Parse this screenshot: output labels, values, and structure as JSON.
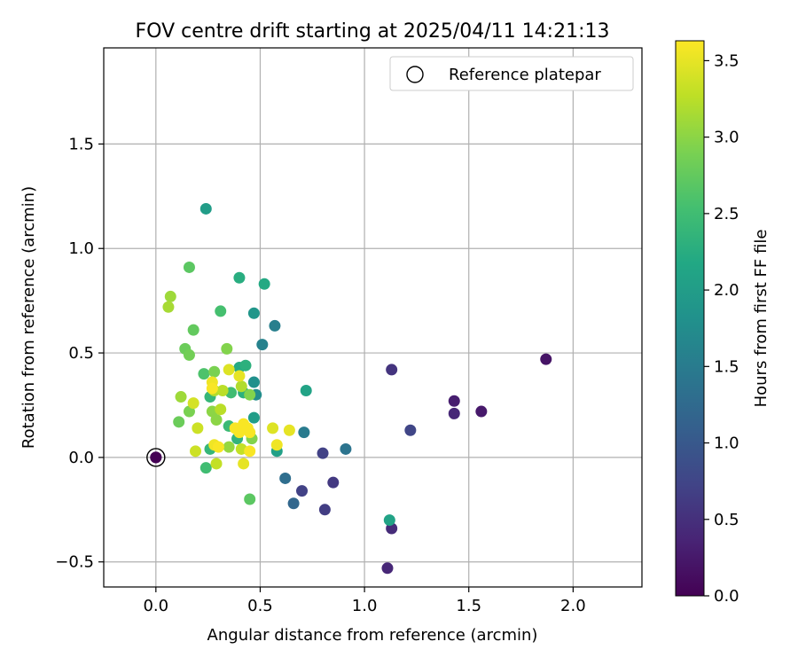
{
  "chart_data": {
    "type": "scatter",
    "title": "FOV centre drift starting at 2025/04/11 14:21:13",
    "xlabel": "Angular distance from reference (arcmin)",
    "ylabel": "Rotation from reference (arcmin)",
    "xlim": [
      -0.25,
      2.33
    ],
    "ylim": [
      -0.62,
      1.96
    ],
    "xticks": [
      0.0,
      0.5,
      1.0,
      1.5,
      2.0
    ],
    "xtick_labels": [
      "0.0",
      "0.5",
      "1.0",
      "1.5",
      "2.0"
    ],
    "yticks": [
      -0.5,
      0.0,
      0.5,
      1.0,
      1.5
    ],
    "ytick_labels": [
      "−0.5",
      "0.0",
      "0.5",
      "1.0",
      "1.5"
    ],
    "grid": true,
    "legend": {
      "position": "top-right",
      "entries": [
        "Reference platepar"
      ]
    },
    "colorbar": {
      "label": "Hours from first FF file",
      "colormap": "viridis",
      "range": [
        0.0,
        3.63
      ],
      "ticks": [
        0.0,
        0.5,
        1.0,
        1.5,
        2.0,
        2.5,
        3.0,
        3.5
      ],
      "tick_labels": [
        "0.0",
        "0.5",
        "1.0",
        "1.5",
        "2.0",
        "2.5",
        "3.0",
        "3.5"
      ]
    },
    "reference_point": {
      "x": 0.0,
      "y": 0.0,
      "c": 0.0
    },
    "points": [
      {
        "x": 0.0,
        "y": 0.0,
        "c": 0.0
      },
      {
        "x": 1.87,
        "y": 0.47,
        "c": 0.2
      },
      {
        "x": 1.56,
        "y": 0.22,
        "c": 0.25
      },
      {
        "x": 1.43,
        "y": 0.27,
        "c": 0.3
      },
      {
        "x": 1.43,
        "y": 0.21,
        "c": 0.4
      },
      {
        "x": 1.11,
        "y": -0.53,
        "c": 0.4
      },
      {
        "x": 1.13,
        "y": -0.34,
        "c": 0.45
      },
      {
        "x": 1.13,
        "y": 0.42,
        "c": 0.55
      },
      {
        "x": 0.85,
        "y": -0.12,
        "c": 0.6
      },
      {
        "x": 0.81,
        "y": -0.25,
        "c": 0.65
      },
      {
        "x": 0.8,
        "y": 0.02,
        "c": 0.7
      },
      {
        "x": 0.7,
        "y": -0.16,
        "c": 0.7
      },
      {
        "x": 1.22,
        "y": 0.13,
        "c": 0.75
      },
      {
        "x": 0.66,
        "y": -0.22,
        "c": 1.2
      },
      {
        "x": 0.62,
        "y": -0.1,
        "c": 1.3
      },
      {
        "x": 0.91,
        "y": 0.04,
        "c": 1.4
      },
      {
        "x": 0.71,
        "y": 0.12,
        "c": 1.5
      },
      {
        "x": 0.57,
        "y": 0.63,
        "c": 1.55
      },
      {
        "x": 0.51,
        "y": 0.54,
        "c": 1.6
      },
      {
        "x": 0.48,
        "y": 0.3,
        "c": 1.75
      },
      {
        "x": 0.47,
        "y": 0.36,
        "c": 1.8
      },
      {
        "x": 0.47,
        "y": 0.69,
        "c": 1.9
      },
      {
        "x": 0.24,
        "y": 1.19,
        "c": 2.0
      },
      {
        "x": 0.47,
        "y": 0.19,
        "c": 2.0
      },
      {
        "x": 0.58,
        "y": 0.03,
        "c": 2.05
      },
      {
        "x": 1.12,
        "y": -0.3,
        "c": 2.1
      },
      {
        "x": 0.72,
        "y": 0.32,
        "c": 2.1
      },
      {
        "x": 0.52,
        "y": 0.83,
        "c": 2.2
      },
      {
        "x": 0.4,
        "y": 0.86,
        "c": 2.25
      },
      {
        "x": 0.4,
        "y": 0.43,
        "c": 2.2
      },
      {
        "x": 0.43,
        "y": 0.44,
        "c": 2.3
      },
      {
        "x": 0.42,
        "y": 0.31,
        "c": 2.3
      },
      {
        "x": 0.39,
        "y": 0.09,
        "c": 2.35
      },
      {
        "x": 0.26,
        "y": 0.29,
        "c": 2.4
      },
      {
        "x": 0.26,
        "y": 0.04,
        "c": 2.4
      },
      {
        "x": 0.24,
        "y": -0.05,
        "c": 2.5
      },
      {
        "x": 0.35,
        "y": 0.15,
        "c": 2.45
      },
      {
        "x": 0.36,
        "y": 0.31,
        "c": 2.5
      },
      {
        "x": 0.31,
        "y": 0.7,
        "c": 2.55
      },
      {
        "x": 0.23,
        "y": 0.4,
        "c": 2.6
      },
      {
        "x": 0.45,
        "y": -0.2,
        "c": 2.7
      },
      {
        "x": 0.16,
        "y": 0.91,
        "c": 2.7
      },
      {
        "x": 0.18,
        "y": 0.61,
        "c": 2.75
      },
      {
        "x": 0.14,
        "y": 0.52,
        "c": 2.8
      },
      {
        "x": 0.16,
        "y": 0.49,
        "c": 2.85
      },
      {
        "x": 0.11,
        "y": 0.17,
        "c": 2.8
      },
      {
        "x": 0.16,
        "y": 0.22,
        "c": 2.9
      },
      {
        "x": 0.28,
        "y": 0.41,
        "c": 2.9
      },
      {
        "x": 0.34,
        "y": 0.52,
        "c": 2.95
      },
      {
        "x": 0.27,
        "y": 0.22,
        "c": 3.0
      },
      {
        "x": 0.29,
        "y": 0.18,
        "c": 3.0
      },
      {
        "x": 0.45,
        "y": 0.3,
        "c": 2.95
      },
      {
        "x": 0.46,
        "y": 0.09,
        "c": 2.95
      },
      {
        "x": 0.35,
        "y": 0.05,
        "c": 3.05
      },
      {
        "x": 0.07,
        "y": 0.77,
        "c": 3.1
      },
      {
        "x": 0.06,
        "y": 0.72,
        "c": 3.15
      },
      {
        "x": 0.12,
        "y": 0.29,
        "c": 3.1
      },
      {
        "x": 0.41,
        "y": 0.34,
        "c": 3.2
      },
      {
        "x": 0.28,
        "y": 0.32,
        "c": 3.2
      },
      {
        "x": 0.32,
        "y": 0.32,
        "c": 3.25
      },
      {
        "x": 0.31,
        "y": 0.23,
        "c": 3.25
      },
      {
        "x": 0.41,
        "y": 0.04,
        "c": 3.3
      },
      {
        "x": 0.29,
        "y": -0.03,
        "c": 3.3
      },
      {
        "x": 0.19,
        "y": 0.03,
        "c": 3.35
      },
      {
        "x": 0.2,
        "y": 0.14,
        "c": 3.35
      },
      {
        "x": 0.18,
        "y": 0.26,
        "c": 3.4
      },
      {
        "x": 0.35,
        "y": 0.42,
        "c": 3.45
      },
      {
        "x": 0.4,
        "y": 0.39,
        "c": 3.5
      },
      {
        "x": 0.56,
        "y": 0.14,
        "c": 3.45
      },
      {
        "x": 0.58,
        "y": 0.06,
        "c": 3.55
      },
      {
        "x": 0.64,
        "y": 0.13,
        "c": 3.5
      },
      {
        "x": 0.42,
        "y": -0.03,
        "c": 3.5
      },
      {
        "x": 0.27,
        "y": 0.36,
        "c": 3.55
      },
      {
        "x": 0.27,
        "y": 0.33,
        "c": 3.6
      },
      {
        "x": 0.28,
        "y": 0.06,
        "c": 3.55
      },
      {
        "x": 0.3,
        "y": 0.05,
        "c": 3.6
      },
      {
        "x": 0.38,
        "y": 0.14,
        "c": 3.6
      },
      {
        "x": 0.4,
        "y": 0.12,
        "c": 3.6
      },
      {
        "x": 0.42,
        "y": 0.16,
        "c": 3.6
      },
      {
        "x": 0.44,
        "y": 0.14,
        "c": 3.6
      },
      {
        "x": 0.45,
        "y": 0.12,
        "c": 3.6
      },
      {
        "x": 0.45,
        "y": 0.03,
        "c": 3.6
      }
    ]
  }
}
